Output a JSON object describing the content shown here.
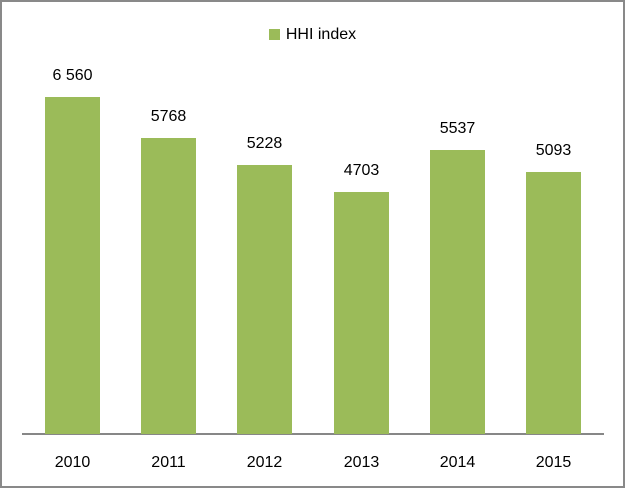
{
  "chart_data": {
    "type": "bar",
    "title": "",
    "categories": [
      "2010",
      "2011",
      "2012",
      "2013",
      "2014",
      "2015"
    ],
    "series": [
      {
        "name": "HHI index",
        "values": [
          6560,
          5768,
          5228,
          4703,
          5537,
          5093
        ]
      }
    ],
    "data_labels": [
      "6 560",
      "5768",
      "5228",
      "4703",
      "5537",
      "5093"
    ],
    "legend": {
      "label": "HHI index",
      "position": "top-center"
    },
    "grid": false,
    "y_axis_visible": false,
    "x_axis_visible": true
  },
  "colors": {
    "bar": "#9BBB59",
    "frame": "#898989",
    "axis": "#878787",
    "text": "#000000",
    "background": "#FFFFFF"
  }
}
